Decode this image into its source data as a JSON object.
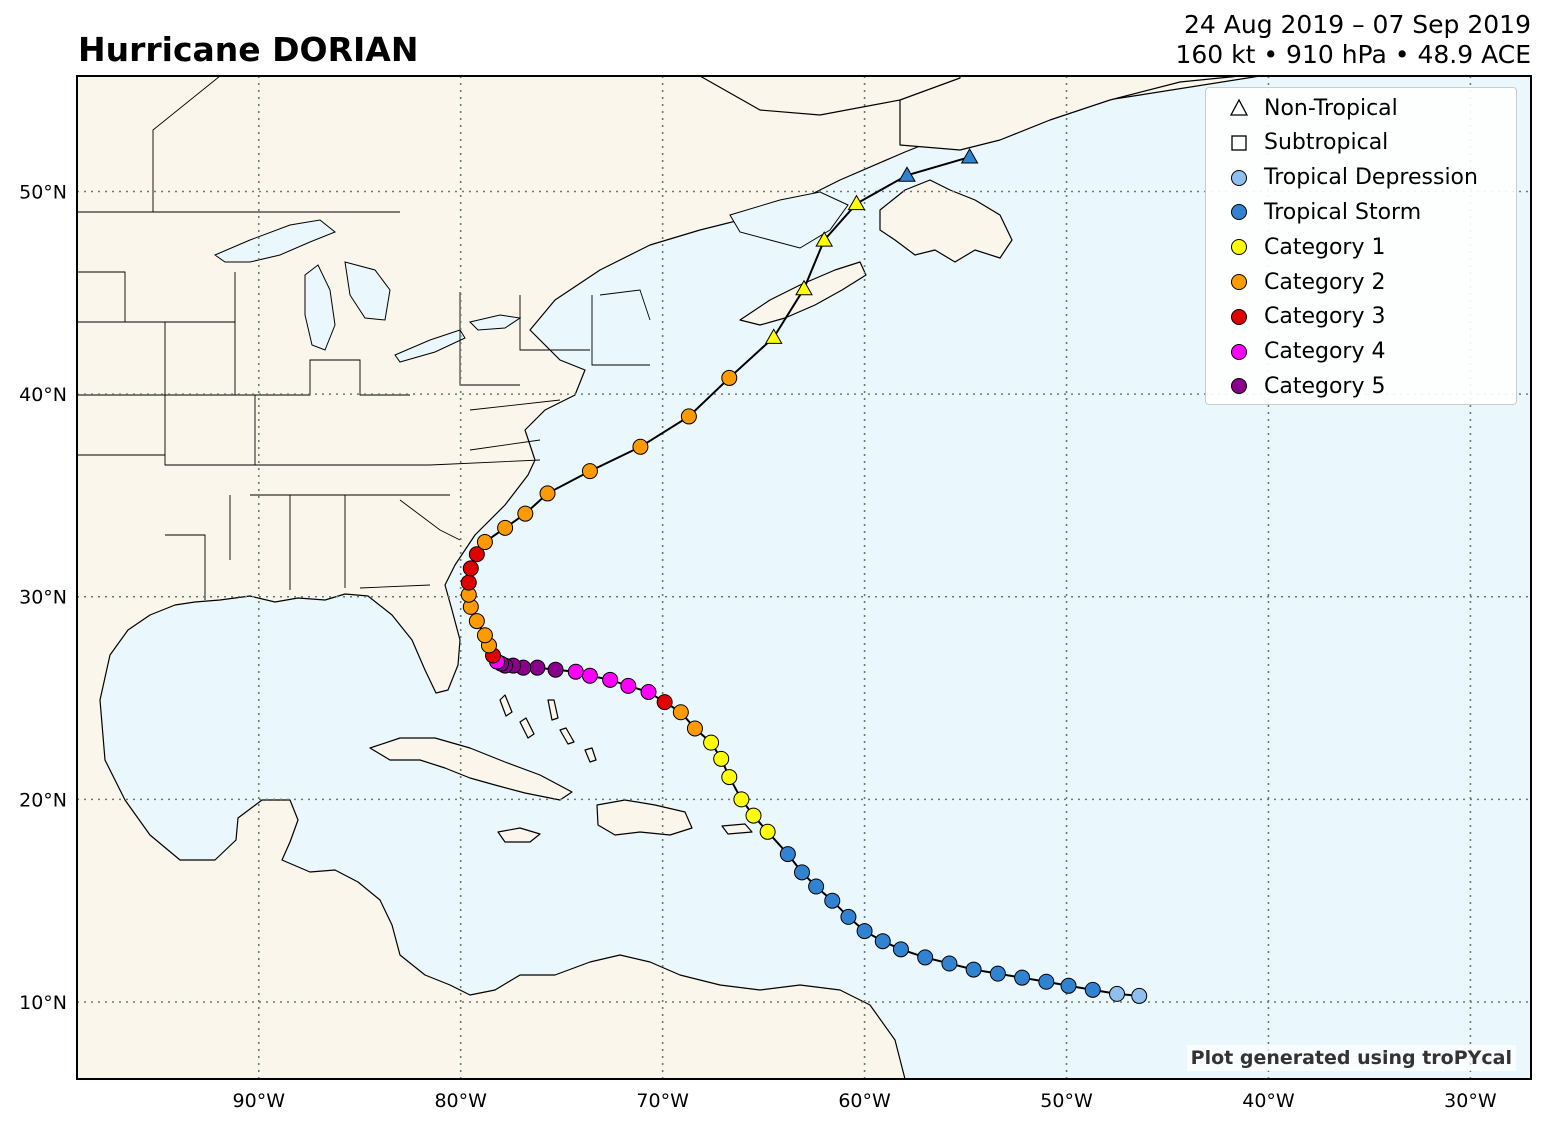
{
  "title": "Hurricane DORIAN",
  "date_range": "24 Aug 2019 – 07 Sep 2019",
  "stats": "160 kt • 910 hPa • 48.9 ACE",
  "credit": "Plot generated using troPYcal",
  "colors": {
    "ocean": "#eaf8fd",
    "land": "#fbf6ec",
    "track": "#000000",
    "tropical_depression": "#8fbfee",
    "tropical_storm": "#3182d1",
    "category_1": "#ffff00",
    "category_2": "#ff9a00",
    "category_3": "#e00000",
    "category_4": "#ff00ff",
    "category_5": "#8b008b"
  },
  "legend": {
    "placement": "top-right",
    "items": [
      {
        "label": "Non-Tropical",
        "marker": "triangle-outline",
        "color": "#ffffff"
      },
      {
        "label": "Subtropical",
        "marker": "square-outline",
        "color": "#ffffff"
      },
      {
        "label": "Tropical Depression",
        "marker": "circle",
        "color": "#8fbfee"
      },
      {
        "label": "Tropical Storm",
        "marker": "circle",
        "color": "#3182d1"
      },
      {
        "label": "Category 1",
        "marker": "circle",
        "color": "#ffff00"
      },
      {
        "label": "Category 2",
        "marker": "circle",
        "color": "#ff9a00"
      },
      {
        "label": "Category 3",
        "marker": "circle",
        "color": "#e00000"
      },
      {
        "label": "Category 4",
        "marker": "circle",
        "color": "#ff00ff"
      },
      {
        "label": "Category 5",
        "marker": "circle",
        "color": "#8b008b"
      }
    ]
  },
  "map": {
    "lon_range": [
      -99,
      -27
    ],
    "lat_range": [
      6.2,
      55.7
    ],
    "lon_ticks": [
      {
        "value": -90,
        "label": "90°W"
      },
      {
        "value": -80,
        "label": "80°W"
      },
      {
        "value": -70,
        "label": "70°W"
      },
      {
        "value": -60,
        "label": "60°W"
      },
      {
        "value": -50,
        "label": "50°W"
      },
      {
        "value": -40,
        "label": "40°W"
      },
      {
        "value": -30,
        "label": "30°W"
      }
    ],
    "lat_ticks": [
      {
        "value": 10,
        "label": "10°N"
      },
      {
        "value": 20,
        "label": "20°N"
      },
      {
        "value": 30,
        "label": "30°N"
      },
      {
        "value": 40,
        "label": "40°N"
      },
      {
        "value": 50,
        "label": "50°N"
      }
    ],
    "grid": true
  },
  "track": [
    {
      "lon": -46.4,
      "lat": 10.3,
      "cat": "TD"
    },
    {
      "lon": -47.5,
      "lat": 10.4,
      "cat": "TD"
    },
    {
      "lon": -48.7,
      "lat": 10.6,
      "cat": "TS"
    },
    {
      "lon": -49.9,
      "lat": 10.8,
      "cat": "TS"
    },
    {
      "lon": -51.0,
      "lat": 11.0,
      "cat": "TS"
    },
    {
      "lon": -52.2,
      "lat": 11.2,
      "cat": "TS"
    },
    {
      "lon": -53.4,
      "lat": 11.4,
      "cat": "TS"
    },
    {
      "lon": -54.6,
      "lat": 11.6,
      "cat": "TS"
    },
    {
      "lon": -55.8,
      "lat": 11.9,
      "cat": "TS"
    },
    {
      "lon": -57.0,
      "lat": 12.2,
      "cat": "TS"
    },
    {
      "lon": -58.2,
      "lat": 12.6,
      "cat": "TS"
    },
    {
      "lon": -59.1,
      "lat": 13.0,
      "cat": "TS"
    },
    {
      "lon": -60.0,
      "lat": 13.5,
      "cat": "TS"
    },
    {
      "lon": -60.8,
      "lat": 14.2,
      "cat": "TS"
    },
    {
      "lon": -61.6,
      "lat": 15.0,
      "cat": "TS"
    },
    {
      "lon": -62.4,
      "lat": 15.7,
      "cat": "TS"
    },
    {
      "lon": -63.1,
      "lat": 16.4,
      "cat": "TS"
    },
    {
      "lon": -63.8,
      "lat": 17.3,
      "cat": "TS"
    },
    {
      "lon": -64.8,
      "lat": 18.4,
      "cat": "C1"
    },
    {
      "lon": -65.5,
      "lat": 19.2,
      "cat": "C1"
    },
    {
      "lon": -66.1,
      "lat": 20.0,
      "cat": "C1"
    },
    {
      "lon": -66.7,
      "lat": 21.1,
      "cat": "C1"
    },
    {
      "lon": -67.1,
      "lat": 22.0,
      "cat": "C1"
    },
    {
      "lon": -67.6,
      "lat": 22.8,
      "cat": "C1"
    },
    {
      "lon": -68.4,
      "lat": 23.5,
      "cat": "C2"
    },
    {
      "lon": -69.1,
      "lat": 24.3,
      "cat": "C2"
    },
    {
      "lon": -69.9,
      "lat": 24.8,
      "cat": "C3"
    },
    {
      "lon": -70.7,
      "lat": 25.3,
      "cat": "C4"
    },
    {
      "lon": -71.7,
      "lat": 25.6,
      "cat": "C4"
    },
    {
      "lon": -72.6,
      "lat": 25.9,
      "cat": "C4"
    },
    {
      "lon": -73.6,
      "lat": 26.1,
      "cat": "C4"
    },
    {
      "lon": -74.3,
      "lat": 26.3,
      "cat": "C4"
    },
    {
      "lon": -75.3,
      "lat": 26.4,
      "cat": "C5"
    },
    {
      "lon": -76.2,
      "lat": 26.5,
      "cat": "C5"
    },
    {
      "lon": -76.9,
      "lat": 26.5,
      "cat": "C5"
    },
    {
      "lon": -77.4,
      "lat": 26.6,
      "cat": "C5"
    },
    {
      "lon": -77.8,
      "lat": 26.6,
      "cat": "C5"
    },
    {
      "lon": -78.0,
      "lat": 26.7,
      "cat": "C5"
    },
    {
      "lon": -78.2,
      "lat": 26.8,
      "cat": "C4"
    },
    {
      "lon": -78.4,
      "lat": 27.1,
      "cat": "C3"
    },
    {
      "lon": -78.6,
      "lat": 27.6,
      "cat": "C2"
    },
    {
      "lon": -78.8,
      "lat": 28.1,
      "cat": "C2"
    },
    {
      "lon": -79.2,
      "lat": 28.8,
      "cat": "C2"
    },
    {
      "lon": -79.5,
      "lat": 29.5,
      "cat": "C2"
    },
    {
      "lon": -79.6,
      "lat": 30.1,
      "cat": "C2"
    },
    {
      "lon": -79.6,
      "lat": 30.7,
      "cat": "C3"
    },
    {
      "lon": -79.5,
      "lat": 31.4,
      "cat": "C3"
    },
    {
      "lon": -79.2,
      "lat": 32.1,
      "cat": "C3"
    },
    {
      "lon": -78.8,
      "lat": 32.7,
      "cat": "C2"
    },
    {
      "lon": -77.8,
      "lat": 33.4,
      "cat": "C2"
    },
    {
      "lon": -76.8,
      "lat": 34.1,
      "cat": "C2"
    },
    {
      "lon": -75.7,
      "lat": 35.1,
      "cat": "C2"
    },
    {
      "lon": -73.6,
      "lat": 36.2,
      "cat": "C2"
    },
    {
      "lon": -71.1,
      "lat": 37.4,
      "cat": "C2"
    },
    {
      "lon": -68.7,
      "lat": 38.9,
      "cat": "C2"
    },
    {
      "lon": -66.7,
      "lat": 40.8,
      "cat": "C2"
    },
    {
      "lon": -64.5,
      "lat": 42.8,
      "cat": "NT-C1"
    },
    {
      "lon": -63.0,
      "lat": 45.2,
      "cat": "NT-C1"
    },
    {
      "lon": -62.0,
      "lat": 47.6,
      "cat": "NT-C1"
    },
    {
      "lon": -60.4,
      "lat": 49.4,
      "cat": "NT-C1"
    },
    {
      "lon": -57.9,
      "lat": 50.8,
      "cat": "NT-TS"
    },
    {
      "lon": -54.8,
      "lat": 51.7,
      "cat": "NT-TS"
    }
  ]
}
